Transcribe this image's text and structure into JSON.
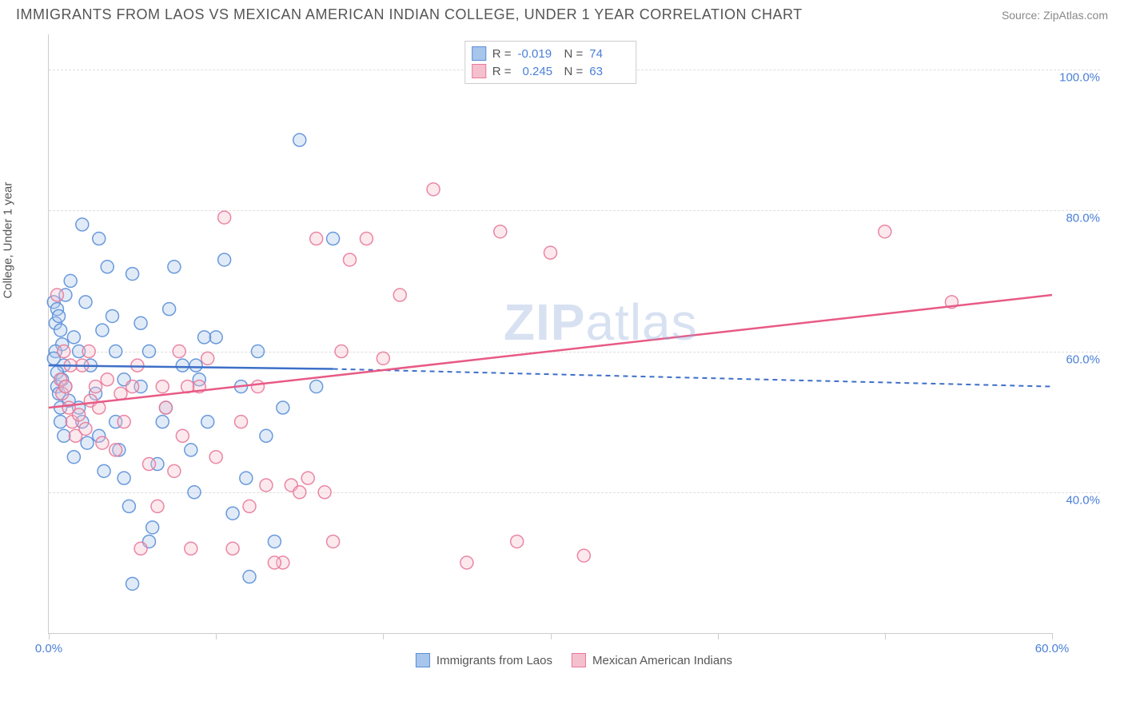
{
  "header": {
    "title": "IMMIGRANTS FROM LAOS VS MEXICAN AMERICAN INDIAN COLLEGE, UNDER 1 YEAR CORRELATION CHART",
    "source_prefix": "Source: ",
    "source_link": "ZipAtlas.com"
  },
  "chart": {
    "type": "scatter",
    "ylabel": "College, Under 1 year",
    "xlim": [
      0,
      60
    ],
    "ylim": [
      20,
      105
    ],
    "xtick_positions": [
      0,
      10,
      20,
      30,
      40,
      50,
      60
    ],
    "xtick_labels": [
      "0.0%",
      "",
      "",
      "",
      "",
      "",
      "60.0%"
    ],
    "ytick_positions": [
      40,
      60,
      80,
      100
    ],
    "ytick_labels": [
      "40.0%",
      "60.0%",
      "80.0%",
      "100.0%"
    ],
    "background_color": "#ffffff",
    "grid_color": "#dddddd",
    "axis_color": "#cccccc",
    "watermark": "ZIPatlas",
    "marker_radius": 8,
    "series": [
      {
        "id": "laos",
        "name": "Immigrants from Laos",
        "color_fill": "#a8c5eb",
        "color_stroke": "#5a8fd8",
        "trend_color": "#3d6fc8",
        "trend": {
          "x1": 0,
          "y1": 58.0,
          "x2": 17,
          "y2": 57.5,
          "dash_after_x": 17,
          "x3": 60,
          "y3": 55.0
        },
        "R": "-0.019",
        "N": "74",
        "points": [
          [
            0.3,
            67
          ],
          [
            0.4,
            64
          ],
          [
            0.5,
            66
          ],
          [
            0.6,
            65
          ],
          [
            0.7,
            63
          ],
          [
            0.8,
            61
          ],
          [
            0.9,
            58
          ],
          [
            0.5,
            55
          ],
          [
            0.6,
            54
          ],
          [
            0.7,
            52
          ],
          [
            0.4,
            60
          ],
          [
            0.3,
            59
          ],
          [
            0.5,
            57
          ],
          [
            0.8,
            56
          ],
          [
            1.0,
            55
          ],
          [
            1.2,
            53
          ],
          [
            1.5,
            62
          ],
          [
            1.8,
            60
          ],
          [
            2.0,
            78
          ],
          [
            2.2,
            67
          ],
          [
            2.5,
            58
          ],
          [
            2.8,
            54
          ],
          [
            3.0,
            76
          ],
          [
            3.2,
            63
          ],
          [
            3.5,
            72
          ],
          [
            3.8,
            65
          ],
          [
            4.0,
            50
          ],
          [
            4.2,
            46
          ],
          [
            4.5,
            42
          ],
          [
            4.5,
            56
          ],
          [
            5.0,
            71
          ],
          [
            5.5,
            64
          ],
          [
            6.0,
            60
          ],
          [
            6.2,
            35
          ],
          [
            6.5,
            44
          ],
          [
            7.0,
            52
          ],
          [
            7.5,
            72
          ],
          [
            8.0,
            58
          ],
          [
            8.5,
            46
          ],
          [
            8.7,
            40
          ],
          [
            9.0,
            56
          ],
          [
            9.5,
            50
          ],
          [
            10.0,
            62
          ],
          [
            10.5,
            73
          ],
          [
            11.0,
            37
          ],
          [
            11.5,
            55
          ],
          [
            12.0,
            28
          ],
          [
            12.5,
            60
          ],
          [
            13.0,
            48
          ],
          [
            14.0,
            52
          ],
          [
            15.0,
            90
          ],
          [
            16.0,
            55
          ],
          [
            17.0,
            76
          ],
          [
            5.0,
            27
          ],
          [
            3.0,
            48
          ],
          [
            2.0,
            50
          ],
          [
            1.5,
            45
          ],
          [
            6.0,
            33
          ],
          [
            4.8,
            38
          ],
          [
            7.2,
            66
          ],
          [
            8.8,
            58
          ],
          [
            9.3,
            62
          ],
          [
            1.0,
            68
          ],
          [
            1.3,
            70
          ],
          [
            0.9,
            48
          ],
          [
            0.7,
            50
          ],
          [
            1.8,
            52
          ],
          [
            2.3,
            47
          ],
          [
            3.3,
            43
          ],
          [
            4.0,
            60
          ],
          [
            5.5,
            55
          ],
          [
            6.8,
            50
          ],
          [
            11.8,
            42
          ],
          [
            13.5,
            33
          ]
        ]
      },
      {
        "id": "mexican",
        "name": "Mexican American Indians",
        "color_fill": "#f5c0ce",
        "color_stroke": "#e87a9a",
        "trend_color": "#e85a85",
        "trend": {
          "x1": 0,
          "y1": 52.0,
          "x2": 60,
          "y2": 68.0
        },
        "R": "0.245",
        "N": "63",
        "points": [
          [
            0.5,
            68
          ],
          [
            0.7,
            56
          ],
          [
            0.8,
            54
          ],
          [
            1.0,
            55
          ],
          [
            1.2,
            52
          ],
          [
            1.4,
            50
          ],
          [
            1.6,
            48
          ],
          [
            1.8,
            51
          ],
          [
            2.0,
            58
          ],
          [
            2.2,
            49
          ],
          [
            2.5,
            53
          ],
          [
            2.8,
            55
          ],
          [
            3.0,
            52
          ],
          [
            3.5,
            56
          ],
          [
            4.0,
            46
          ],
          [
            4.5,
            50
          ],
          [
            5.0,
            55
          ],
          [
            5.5,
            32
          ],
          [
            6.0,
            44
          ],
          [
            6.5,
            38
          ],
          [
            7.0,
            52
          ],
          [
            7.5,
            43
          ],
          [
            8.0,
            48
          ],
          [
            8.5,
            32
          ],
          [
            9.0,
            55
          ],
          [
            9.5,
            59
          ],
          [
            10.0,
            45
          ],
          [
            10.5,
            79
          ],
          [
            11.0,
            32
          ],
          [
            11.5,
            50
          ],
          [
            12.0,
            38
          ],
          [
            13.0,
            41
          ],
          [
            14.0,
            30
          ],
          [
            14.5,
            41
          ],
          [
            15.0,
            40
          ],
          [
            16.0,
            76
          ],
          [
            17.0,
            33
          ],
          [
            17.5,
            60
          ],
          [
            18.0,
            73
          ],
          [
            19.0,
            76
          ],
          [
            20.0,
            59
          ],
          [
            21.0,
            68
          ],
          [
            23.0,
            83
          ],
          [
            25.0,
            30
          ],
          [
            27.0,
            77
          ],
          [
            28.0,
            33
          ],
          [
            30.0,
            74
          ],
          [
            32.0,
            31
          ],
          [
            50.0,
            77
          ],
          [
            54.0,
            67
          ],
          [
            0.9,
            60
          ],
          [
            1.3,
            58
          ],
          [
            2.4,
            60
          ],
          [
            3.2,
            47
          ],
          [
            4.3,
            54
          ],
          [
            5.3,
            58
          ],
          [
            6.8,
            55
          ],
          [
            7.8,
            60
          ],
          [
            8.3,
            55
          ],
          [
            12.5,
            55
          ],
          [
            13.5,
            30
          ],
          [
            15.5,
            42
          ],
          [
            16.5,
            40
          ]
        ]
      }
    ]
  },
  "legend_bottom": {
    "items": [
      {
        "label": "Immigrants from Laos",
        "swatch_fill": "#a8c5eb",
        "swatch_stroke": "#5a8fd8"
      },
      {
        "label": "Mexican American Indians",
        "swatch_fill": "#f5c0ce",
        "swatch_stroke": "#e87a9a"
      }
    ]
  }
}
